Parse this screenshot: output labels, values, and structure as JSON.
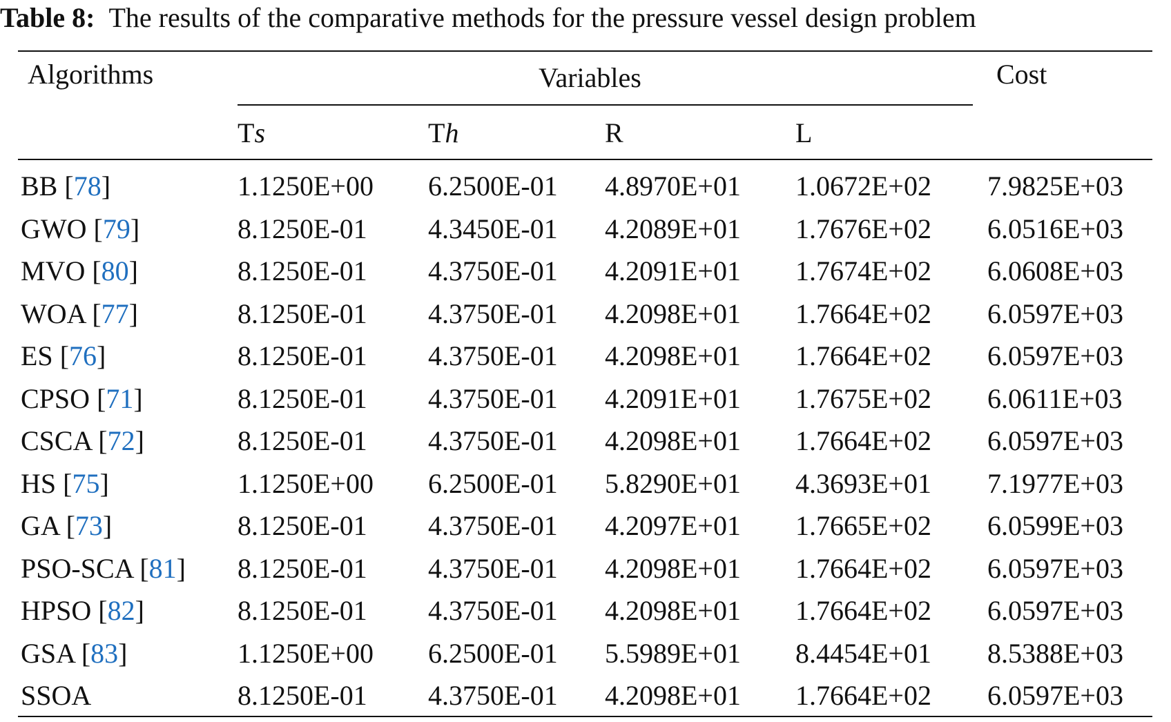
{
  "caption": {
    "label": "Table 8:",
    "text": "The results of the comparative methods for the pressure vessel design problem"
  },
  "table": {
    "headers": {
      "algorithms": "Algorithms",
      "variables": "Variables",
      "cost": "Cost"
    },
    "subheaders": [
      {
        "text": "T",
        "italic": "s"
      },
      {
        "text": "T",
        "italic": "h"
      },
      {
        "text": "R"
      },
      {
        "text": "L"
      }
    ],
    "rows": [
      {
        "algorithm": "BB",
        "ref": [
          "[",
          "78",
          "]"
        ],
        "values": [
          "1.1250E+00",
          "6.2500E-01",
          "4.8970E+01",
          "1.0672E+02",
          "7.9825E+03"
        ]
      },
      {
        "algorithm": "GWO",
        "ref": [
          "[",
          "79",
          "]"
        ],
        "values": [
          "8.1250E-01",
          "4.3450E-01",
          "4.2089E+01",
          "1.7676E+02",
          "6.0516E+03"
        ]
      },
      {
        "algorithm": "MVO",
        "ref": [
          "[",
          "80",
          "]"
        ],
        "values": [
          "8.1250E-01",
          "4.3750E-01",
          "4.2091E+01",
          "1.7674E+02",
          "6.0608E+03"
        ]
      },
      {
        "algorithm": "WOA",
        "ref": [
          "[",
          "77",
          "]"
        ],
        "values": [
          "8.1250E-01",
          "4.3750E-01",
          "4.2098E+01",
          "1.7664E+02",
          "6.0597E+03"
        ]
      },
      {
        "algorithm": "ES",
        "ref": [
          "[",
          "76",
          "]"
        ],
        "values": [
          "8.1250E-01",
          "4.3750E-01",
          "4.2098E+01",
          "1.7664E+02",
          "6.0597E+03"
        ]
      },
      {
        "algorithm": "CPSO",
        "ref": [
          "[",
          "71",
          "]"
        ],
        "values": [
          "8.1250E-01",
          "4.3750E-01",
          "4.2091E+01",
          "1.7675E+02",
          "6.0611E+03"
        ]
      },
      {
        "algorithm": "CSCA",
        "ref": [
          "[",
          "72",
          "]"
        ],
        "values": [
          "8.1250E-01",
          "4.3750E-01",
          "4.2098E+01",
          "1.7664E+02",
          "6.0597E+03"
        ]
      },
      {
        "algorithm": "HS",
        "ref": [
          "[",
          "75",
          "]"
        ],
        "values": [
          "1.1250E+00",
          "6.2500E-01",
          "5.8290E+01",
          "4.3693E+01",
          "7.1977E+03"
        ]
      },
      {
        "algorithm": "GA",
        "ref": [
          "[",
          "73",
          "]"
        ],
        "values": [
          "8.1250E-01",
          "4.3750E-01",
          "4.2097E+01",
          "1.7665E+02",
          "6.0599E+03"
        ]
      },
      {
        "algorithm": "PSO-SCA",
        "ref": [
          "[",
          "81",
          "]"
        ],
        "values": [
          "8.1250E-01",
          "4.3750E-01",
          "4.2098E+01",
          "1.7664E+02",
          "6.0597E+03"
        ]
      },
      {
        "algorithm": "HPSO",
        "ref": [
          "[",
          "82",
          "]"
        ],
        "values": [
          "8.1250E-01",
          "4.3750E-01",
          "4.2098E+01",
          "1.7664E+02",
          "6.0597E+03"
        ]
      },
      {
        "algorithm": "GSA",
        "ref": [
          "[",
          "83",
          "]"
        ],
        "values": [
          "1.1250E+00",
          "6.2500E-01",
          "5.5989E+01",
          "8.4454E+01",
          "8.5388E+03"
        ]
      },
      {
        "algorithm": "SSOA",
        "values": [
          "8.1250E-01",
          "4.3750E-01",
          "4.2098E+01",
          "1.7664E+02",
          "6.0597E+03"
        ]
      }
    ]
  }
}
